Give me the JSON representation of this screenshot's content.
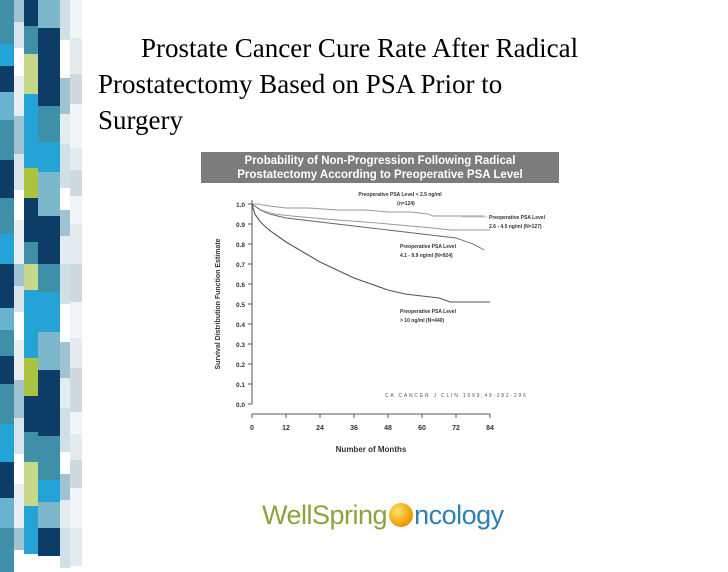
{
  "slide": {
    "title_line1": "Prostate Cancer Cure Rate After Radical",
    "title_line2": "Prostatectomy Based on PSA Prior to",
    "title_line3": "Surgery"
  },
  "chart_header": {
    "line1": "Probability of Non-Progression Following Radical",
    "line2": "Prostatectomy According to Preoperative PSA Level"
  },
  "logo": {
    "part1": "WellSpring",
    "part2": "ncology"
  },
  "colors": {
    "header_bg": "#7c7c7c",
    "strip_teal": "#3f8fa8",
    "strip_navy": "#0d3d66",
    "strip_sky": "#23a3d6",
    "strip_lime": "#aac43f",
    "logo_green": "#8aa43a",
    "logo_blue": "#2e7fb4"
  },
  "chart_data": {
    "type": "line",
    "xlabel": "Number of Months",
    "ylabel": "Survival Distribution Function Estimate",
    "xlim": [
      0,
      84
    ],
    "ylim": [
      0,
      1.0
    ],
    "xticks": [
      "0",
      "12",
      "24",
      "36",
      "48",
      "60",
      "72",
      "84"
    ],
    "yticks": [
      "0.0",
      "0.1",
      "0.2",
      "0.3",
      "0.4",
      "0.5",
      "0.6",
      "0.7",
      "0.8",
      "0.9",
      "1.0"
    ],
    "annotation": "CA CANCER J CLIN 1999;49:282-296",
    "series": [
      {
        "label_line1": "Preoperative PSA Level < 2.5 ng/ml",
        "label_line2": "(n=124)",
        "x": [
          0,
          2,
          6,
          12,
          20,
          30,
          40,
          48,
          56,
          62,
          64,
          70,
          78,
          82
        ],
        "y": [
          1.0,
          1.0,
          0.99,
          0.98,
          0.98,
          0.97,
          0.97,
          0.96,
          0.96,
          0.95,
          0.94,
          0.94,
          0.94,
          0.94
        ]
      },
      {
        "label_line1": "Preoperative PSA Level",
        "label_line2": "2.6 - 4.0 ng/ml (N=127)",
        "x": [
          0,
          3,
          8,
          14,
          22,
          30,
          40,
          48,
          56,
          64,
          70,
          76,
          80,
          84
        ],
        "y": [
          1.0,
          0.97,
          0.95,
          0.94,
          0.93,
          0.92,
          0.91,
          0.9,
          0.89,
          0.88,
          0.87,
          0.87,
          0.87,
          0.87
        ]
      },
      {
        "label_line1": "Preoperative PSA Level",
        "label_line2": "4.1 - 9.9 ng/ml (N=924)",
        "x": [
          0,
          3,
          6,
          12,
          18,
          24,
          30,
          36,
          42,
          48,
          54,
          60,
          66,
          72,
          78,
          82
        ],
        "y": [
          1.0,
          0.97,
          0.95,
          0.93,
          0.92,
          0.91,
          0.9,
          0.89,
          0.88,
          0.87,
          0.86,
          0.85,
          0.84,
          0.83,
          0.8,
          0.77
        ]
      },
      {
        "label_line1": "Preoperative PSA Level",
        "label_line2": "> 10 ng/ml (N=440)",
        "x": [
          0,
          1,
          3,
          6,
          9,
          12,
          18,
          24,
          30,
          36,
          42,
          48,
          54,
          60,
          66,
          70,
          72,
          78,
          84
        ],
        "y": [
          1.0,
          0.95,
          0.91,
          0.87,
          0.84,
          0.81,
          0.76,
          0.71,
          0.67,
          0.63,
          0.6,
          0.57,
          0.55,
          0.54,
          0.53,
          0.51,
          0.51,
          0.51,
          0.51
        ]
      }
    ]
  }
}
